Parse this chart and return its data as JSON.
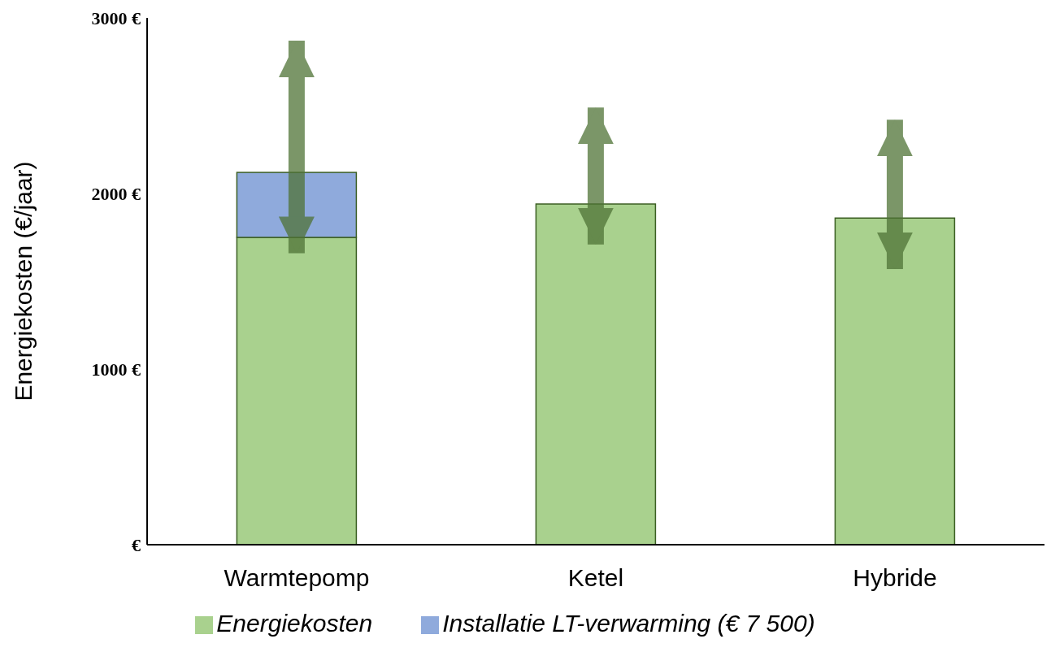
{
  "chart_data": {
    "type": "bar",
    "stacked": true,
    "ylabel": "Energiekosten (€/jaar)",
    "categories": [
      "Warmtepomp",
      "Ketel",
      "Hybride"
    ],
    "series": [
      {
        "name": "Energiekosten",
        "color": "#a9d18e",
        "values": [
          1750,
          1940,
          1860
        ],
        "errors": [
          null,
          [
            1710,
            2490
          ],
          [
            1570,
            2420
          ]
        ]
      },
      {
        "name": "Installatie LT-verwarming  (€ 7 500)",
        "color": "#8faadc",
        "values": [
          370,
          null,
          null
        ],
        "errors": [
          [
            1660,
            2870
          ],
          null,
          null
        ]
      }
    ],
    "ylim": [
      0,
      3000
    ],
    "yticks": [
      {
        "value": 0,
        "label": "€"
      },
      {
        "value": 1000,
        "label": "1000 €"
      },
      {
        "value": 2000,
        "label": "2000 €"
      },
      {
        "value": 3000,
        "label": "3000 €"
      }
    ],
    "grid": false,
    "legend": "bottom"
  }
}
